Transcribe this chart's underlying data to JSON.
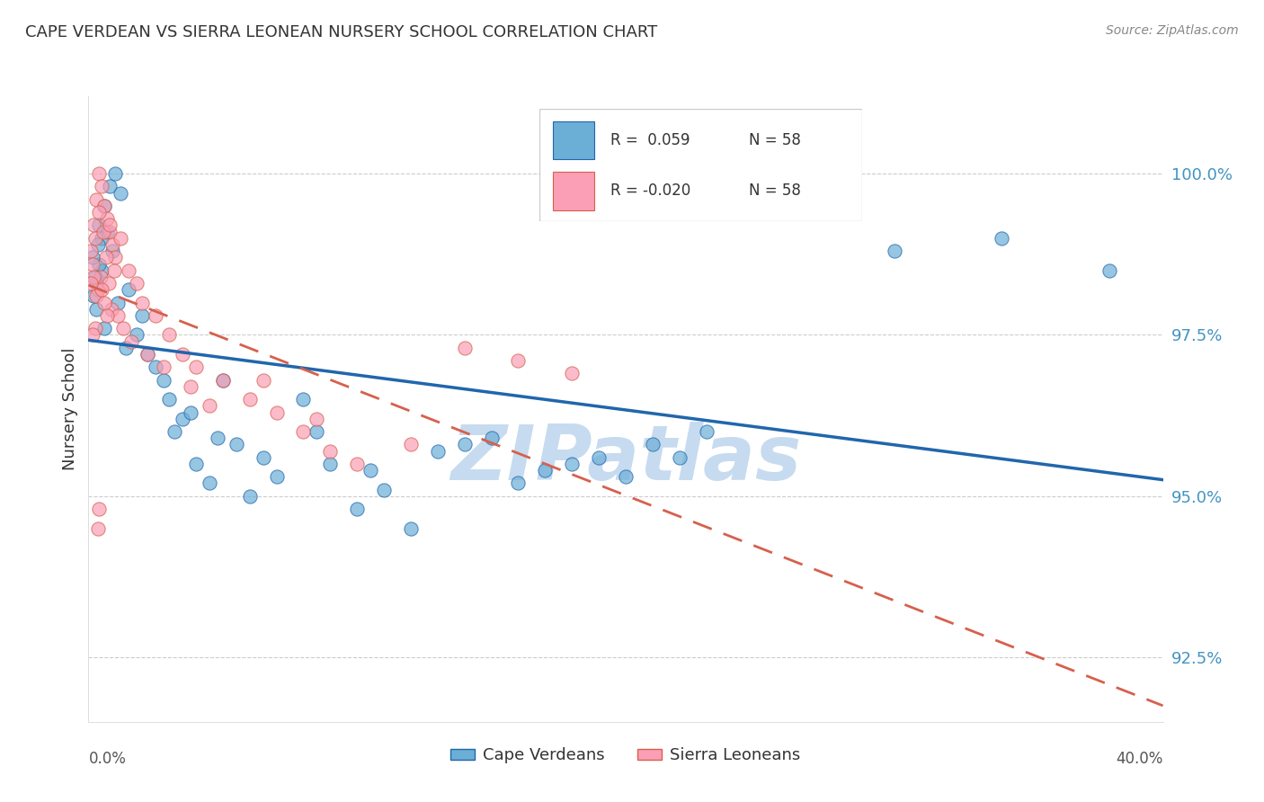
{
  "title": "CAPE VERDEAN VS SIERRA LEONEAN NURSERY SCHOOL CORRELATION CHART",
  "source": "Source: ZipAtlas.com",
  "ylabel": "Nursery School",
  "yticks": [
    92.5,
    95.0,
    97.5,
    100.0
  ],
  "ytick_labels": [
    "92.5%",
    "95.0%",
    "97.5%",
    "100.0%"
  ],
  "xlim": [
    0.0,
    40.0
  ],
  "ylim": [
    91.5,
    101.2
  ],
  "blue_color": "#6baed6",
  "pink_color": "#fa9fb5",
  "trend_blue": "#2166ac",
  "trend_pink": "#d6604d",
  "axis_color": "#4393c3",
  "watermark_color": "#c6dbef",
  "cape_verdean_x": [
    0.3,
    0.5,
    0.4,
    0.6,
    0.8,
    1.0,
    1.2,
    0.7,
    0.9,
    1.5,
    2.0,
    1.8,
    2.5,
    3.0,
    3.2,
    3.5,
    4.0,
    4.5,
    5.0,
    5.5,
    6.0,
    7.0,
    8.0,
    9.0,
    10.0,
    11.0,
    12.0,
    14.0,
    16.0,
    18.0,
    20.0,
    22.0,
    0.2,
    0.3,
    0.4,
    0.5,
    0.6,
    1.1,
    1.4,
    2.2,
    2.8,
    3.8,
    4.8,
    6.5,
    8.5,
    10.5,
    13.0,
    15.0,
    17.0,
    19.0,
    21.0,
    23.0,
    30.0,
    34.0,
    38.0,
    0.15,
    0.25,
    0.35
  ],
  "cape_verdean_y": [
    98.3,
    98.5,
    99.2,
    99.5,
    99.8,
    100.0,
    99.7,
    99.1,
    98.8,
    98.2,
    97.8,
    97.5,
    97.0,
    96.5,
    96.0,
    96.2,
    95.5,
    95.2,
    96.8,
    95.8,
    95.0,
    95.3,
    96.5,
    95.5,
    94.8,
    95.1,
    94.5,
    95.8,
    95.2,
    95.5,
    95.3,
    95.6,
    98.1,
    97.9,
    98.6,
    99.0,
    97.6,
    98.0,
    97.3,
    97.2,
    96.8,
    96.3,
    95.9,
    95.6,
    96.0,
    95.4,
    95.7,
    95.9,
    95.4,
    95.6,
    95.8,
    96.0,
    98.8,
    99.0,
    98.5,
    98.7,
    98.4,
    98.9
  ],
  "sierra_leonean_x": [
    0.1,
    0.2,
    0.3,
    0.4,
    0.5,
    0.6,
    0.7,
    0.8,
    0.9,
    1.0,
    1.2,
    1.5,
    1.8,
    2.0,
    2.5,
    3.0,
    3.5,
    4.0,
    5.0,
    6.0,
    7.0,
    8.0,
    9.0,
    10.0,
    0.15,
    0.25,
    0.35,
    0.45,
    0.55,
    0.65,
    0.75,
    0.85,
    0.95,
    1.1,
    1.3,
    1.6,
    2.2,
    2.8,
    3.8,
    4.5,
    6.5,
    8.5,
    12.0,
    14.0,
    16.0,
    18.0,
    0.4,
    0.3,
    0.2,
    0.5,
    0.6,
    0.7,
    0.8,
    0.4,
    0.35,
    0.25,
    0.15,
    0.1
  ],
  "sierra_leonean_y": [
    98.8,
    99.2,
    99.6,
    100.0,
    99.8,
    99.5,
    99.3,
    99.1,
    98.9,
    98.7,
    99.0,
    98.5,
    98.3,
    98.0,
    97.8,
    97.5,
    97.2,
    97.0,
    96.8,
    96.5,
    96.3,
    96.0,
    95.7,
    95.5,
    98.6,
    99.0,
    98.2,
    98.4,
    99.1,
    98.7,
    98.3,
    97.9,
    98.5,
    97.8,
    97.6,
    97.4,
    97.2,
    97.0,
    96.7,
    96.4,
    96.8,
    96.2,
    95.8,
    97.3,
    97.1,
    96.9,
    99.4,
    98.1,
    98.4,
    98.2,
    98.0,
    97.8,
    99.2,
    94.8,
    94.5,
    97.6,
    97.5,
    98.3
  ]
}
